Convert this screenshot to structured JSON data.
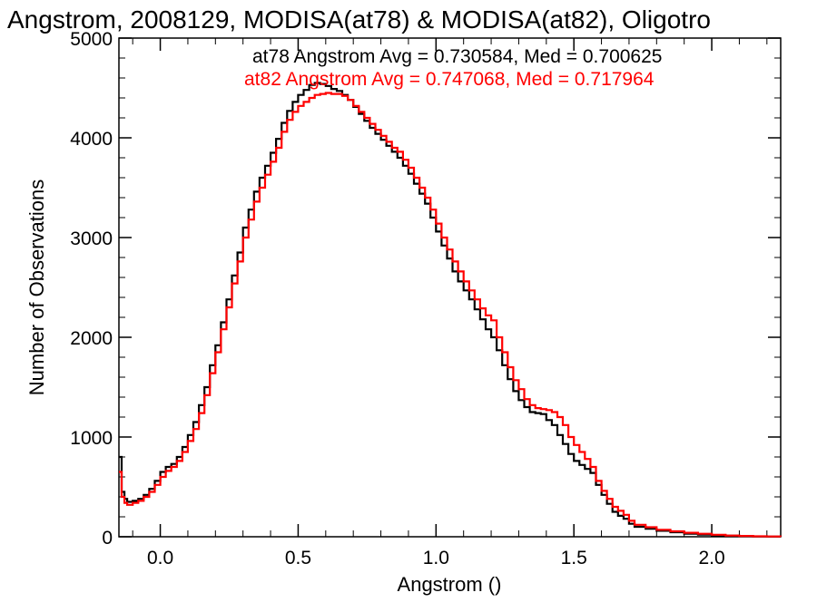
{
  "chart_data": {
    "type": "line",
    "title": "Angstrom, 2008129, MODISA(at78) & MODISA(at82), Oligotro",
    "xlabel": "Angstrom ()",
    "ylabel": "Number of Observations",
    "xlim": [
      -0.15,
      2.25
    ],
    "ylim": [
      0,
      5000
    ],
    "x_ticks": [
      0.0,
      0.5,
      1.0,
      1.5,
      2.0
    ],
    "x_tick_labels": [
      "0.0",
      "0.5",
      "1.0",
      "1.5",
      "2.0"
    ],
    "y_ticks": [
      0,
      1000,
      2000,
      3000,
      4000,
      5000
    ],
    "y_tick_labels": [
      "0",
      "1000",
      "2000",
      "3000",
      "4000",
      "5000"
    ],
    "grid": false,
    "series": [
      {
        "name": "at78",
        "annotation": "at78 Angstrom Avg = 0.730584, Med = 0.700625",
        "color": "#000000",
        "points": [
          [
            -0.15,
            800
          ],
          [
            -0.14,
            450
          ],
          [
            -0.13,
            380
          ],
          [
            -0.12,
            350
          ],
          [
            -0.1,
            360
          ],
          [
            -0.08,
            380
          ],
          [
            -0.06,
            420
          ],
          [
            -0.04,
            480
          ],
          [
            -0.02,
            560
          ],
          [
            0.0,
            650
          ],
          [
            0.02,
            700
          ],
          [
            0.04,
            730
          ],
          [
            0.06,
            800
          ],
          [
            0.08,
            900
          ],
          [
            0.1,
            1020
          ],
          [
            0.12,
            1150
          ],
          [
            0.14,
            1320
          ],
          [
            0.16,
            1500
          ],
          [
            0.18,
            1720
          ],
          [
            0.2,
            1920
          ],
          [
            0.22,
            2150
          ],
          [
            0.24,
            2380
          ],
          [
            0.26,
            2620
          ],
          [
            0.28,
            2850
          ],
          [
            0.3,
            3100
          ],
          [
            0.32,
            3280
          ],
          [
            0.34,
            3460
          ],
          [
            0.36,
            3600
          ],
          [
            0.38,
            3720
          ],
          [
            0.4,
            3850
          ],
          [
            0.42,
            3990
          ],
          [
            0.44,
            4150
          ],
          [
            0.46,
            4270
          ],
          [
            0.48,
            4360
          ],
          [
            0.5,
            4430
          ],
          [
            0.52,
            4480
          ],
          [
            0.54,
            4530
          ],
          [
            0.56,
            4550
          ],
          [
            0.58,
            4540
          ],
          [
            0.6,
            4520
          ],
          [
            0.62,
            4490
          ],
          [
            0.64,
            4470
          ],
          [
            0.66,
            4430
          ],
          [
            0.68,
            4380
          ],
          [
            0.7,
            4310
          ],
          [
            0.72,
            4240
          ],
          [
            0.74,
            4170
          ],
          [
            0.76,
            4100
          ],
          [
            0.78,
            4040
          ],
          [
            0.8,
            3980
          ],
          [
            0.82,
            3920
          ],
          [
            0.84,
            3860
          ],
          [
            0.86,
            3800
          ],
          [
            0.88,
            3720
          ],
          [
            0.9,
            3640
          ],
          [
            0.92,
            3540
          ],
          [
            0.94,
            3440
          ],
          [
            0.96,
            3340
          ],
          [
            0.98,
            3200
          ],
          [
            1.0,
            3060
          ],
          [
            1.02,
            2920
          ],
          [
            1.04,
            2790
          ],
          [
            1.06,
            2660
          ],
          [
            1.08,
            2560
          ],
          [
            1.1,
            2470
          ],
          [
            1.12,
            2380
          ],
          [
            1.14,
            2280
          ],
          [
            1.16,
            2180
          ],
          [
            1.18,
            2080
          ],
          [
            1.2,
            2000
          ],
          [
            1.22,
            1870
          ],
          [
            1.24,
            1720
          ],
          [
            1.26,
            1580
          ],
          [
            1.28,
            1460
          ],
          [
            1.3,
            1370
          ],
          [
            1.32,
            1300
          ],
          [
            1.34,
            1250
          ],
          [
            1.36,
            1240
          ],
          [
            1.38,
            1230
          ],
          [
            1.4,
            1170
          ],
          [
            1.42,
            1120
          ],
          [
            1.44,
            1020
          ],
          [
            1.46,
            930
          ],
          [
            1.48,
            830
          ],
          [
            1.5,
            760
          ],
          [
            1.52,
            720
          ],
          [
            1.54,
            680
          ],
          [
            1.56,
            640
          ],
          [
            1.58,
            520
          ],
          [
            1.6,
            420
          ],
          [
            1.62,
            330
          ],
          [
            1.64,
            250
          ],
          [
            1.66,
            210
          ],
          [
            1.68,
            180
          ],
          [
            1.7,
            130
          ],
          [
            1.72,
            100
          ],
          [
            1.76,
            80
          ],
          [
            1.8,
            60
          ],
          [
            1.85,
            45
          ],
          [
            1.9,
            30
          ],
          [
            1.95,
            22
          ],
          [
            2.0,
            15
          ],
          [
            2.05,
            10
          ],
          [
            2.1,
            6
          ],
          [
            2.15,
            4
          ],
          [
            2.2,
            2
          ],
          [
            2.25,
            1
          ]
        ]
      },
      {
        "name": "at82",
        "annotation": "at82 Angstrom Avg = 0.747068, Med = 0.717964",
        "color": "#ff0000",
        "points": [
          [
            -0.15,
            650
          ],
          [
            -0.14,
            400
          ],
          [
            -0.13,
            340
          ],
          [
            -0.12,
            320
          ],
          [
            -0.1,
            340
          ],
          [
            -0.08,
            360
          ],
          [
            -0.06,
            400
          ],
          [
            -0.04,
            450
          ],
          [
            -0.02,
            520
          ],
          [
            0.0,
            600
          ],
          [
            0.02,
            660
          ],
          [
            0.04,
            700
          ],
          [
            0.06,
            760
          ],
          [
            0.08,
            850
          ],
          [
            0.1,
            960
          ],
          [
            0.12,
            1080
          ],
          [
            0.14,
            1240
          ],
          [
            0.16,
            1420
          ],
          [
            0.18,
            1640
          ],
          [
            0.2,
            1850
          ],
          [
            0.22,
            2080
          ],
          [
            0.24,
            2300
          ],
          [
            0.26,
            2540
          ],
          [
            0.28,
            2760
          ],
          [
            0.3,
            3000
          ],
          [
            0.32,
            3180
          ],
          [
            0.34,
            3360
          ],
          [
            0.36,
            3500
          ],
          [
            0.38,
            3630
          ],
          [
            0.4,
            3760
          ],
          [
            0.42,
            3900
          ],
          [
            0.44,
            4060
          ],
          [
            0.46,
            4180
          ],
          [
            0.48,
            4260
          ],
          [
            0.5,
            4320
          ],
          [
            0.52,
            4360
          ],
          [
            0.54,
            4400
          ],
          [
            0.56,
            4430
          ],
          [
            0.58,
            4440
          ],
          [
            0.6,
            4450
          ],
          [
            0.62,
            4440
          ],
          [
            0.64,
            4440
          ],
          [
            0.66,
            4420
          ],
          [
            0.68,
            4380
          ],
          [
            0.7,
            4320
          ],
          [
            0.72,
            4260
          ],
          [
            0.74,
            4200
          ],
          [
            0.76,
            4140
          ],
          [
            0.78,
            4080
          ],
          [
            0.8,
            4020
          ],
          [
            0.82,
            3960
          ],
          [
            0.84,
            3900
          ],
          [
            0.86,
            3860
          ],
          [
            0.88,
            3780
          ],
          [
            0.9,
            3700
          ],
          [
            0.92,
            3600
          ],
          [
            0.94,
            3500
          ],
          [
            0.96,
            3400
          ],
          [
            0.98,
            3280
          ],
          [
            1.0,
            3140
          ],
          [
            1.02,
            3000
          ],
          [
            1.04,
            2880
          ],
          [
            1.06,
            2760
          ],
          [
            1.08,
            2660
          ],
          [
            1.1,
            2560
          ],
          [
            1.12,
            2470
          ],
          [
            1.14,
            2380
          ],
          [
            1.16,
            2290
          ],
          [
            1.18,
            2220
          ],
          [
            1.2,
            2170
          ],
          [
            1.22,
            2000
          ],
          [
            1.24,
            1850
          ],
          [
            1.26,
            1700
          ],
          [
            1.28,
            1570
          ],
          [
            1.3,
            1480
          ],
          [
            1.32,
            1380
          ],
          [
            1.34,
            1320
          ],
          [
            1.36,
            1290
          ],
          [
            1.38,
            1280
          ],
          [
            1.4,
            1270
          ],
          [
            1.42,
            1250
          ],
          [
            1.44,
            1200
          ],
          [
            1.46,
            1120
          ],
          [
            1.48,
            1000
          ],
          [
            1.5,
            920
          ],
          [
            1.52,
            850
          ],
          [
            1.54,
            780
          ],
          [
            1.56,
            700
          ],
          [
            1.58,
            560
          ],
          [
            1.6,
            460
          ],
          [
            1.62,
            380
          ],
          [
            1.64,
            300
          ],
          [
            1.66,
            260
          ],
          [
            1.68,
            220
          ],
          [
            1.7,
            160
          ],
          [
            1.72,
            120
          ],
          [
            1.76,
            95
          ],
          [
            1.8,
            70
          ],
          [
            1.85,
            55
          ],
          [
            1.9,
            40
          ],
          [
            1.95,
            30
          ],
          [
            2.0,
            20
          ],
          [
            2.05,
            12
          ],
          [
            2.1,
            8
          ],
          [
            2.15,
            5
          ],
          [
            2.2,
            3
          ],
          [
            2.25,
            1
          ]
        ]
      }
    ]
  }
}
